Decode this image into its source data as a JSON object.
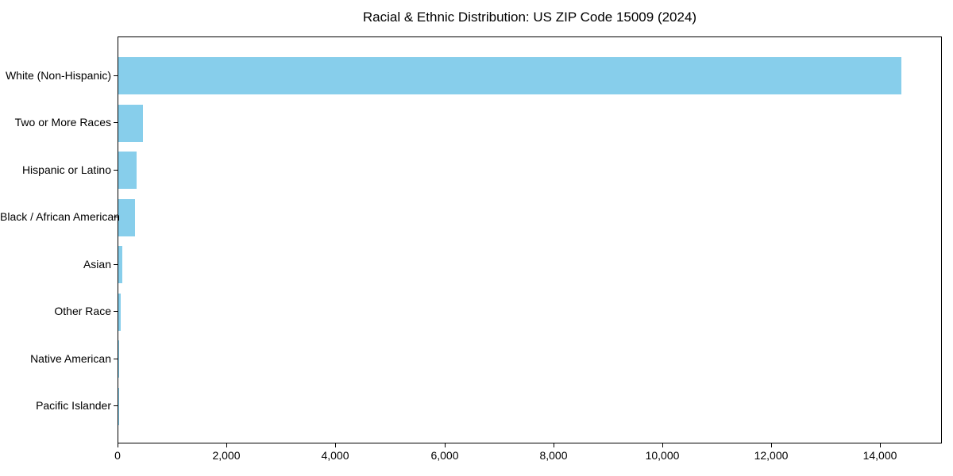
{
  "chart_data": {
    "type": "bar",
    "orientation": "horizontal",
    "title": "Racial & Ethnic Distribution: US ZIP Code 15009 (2024)",
    "categories": [
      "White (Non-Hispanic)",
      "Two or More Races",
      "Hispanic or Latino",
      "Black / African American",
      "Asian",
      "Other Race",
      "Native American",
      "Pacific Islander"
    ],
    "values": [
      14400,
      455,
      340,
      300,
      70,
      40,
      10,
      3
    ],
    "xlabel": "",
    "ylabel": "",
    "xlim": [
      0,
      15130
    ],
    "x_ticks": [
      0,
      2000,
      4000,
      6000,
      8000,
      10000,
      12000,
      14000
    ],
    "x_tick_labels": [
      "0",
      "2,000",
      "4,000",
      "6,000",
      "8,000",
      "10,000",
      "12,000",
      "14,000"
    ],
    "bar_color": "#87CEEB",
    "grid": false,
    "legend": false,
    "background_color": "#FFFFFF",
    "axis_color": "#000000"
  }
}
